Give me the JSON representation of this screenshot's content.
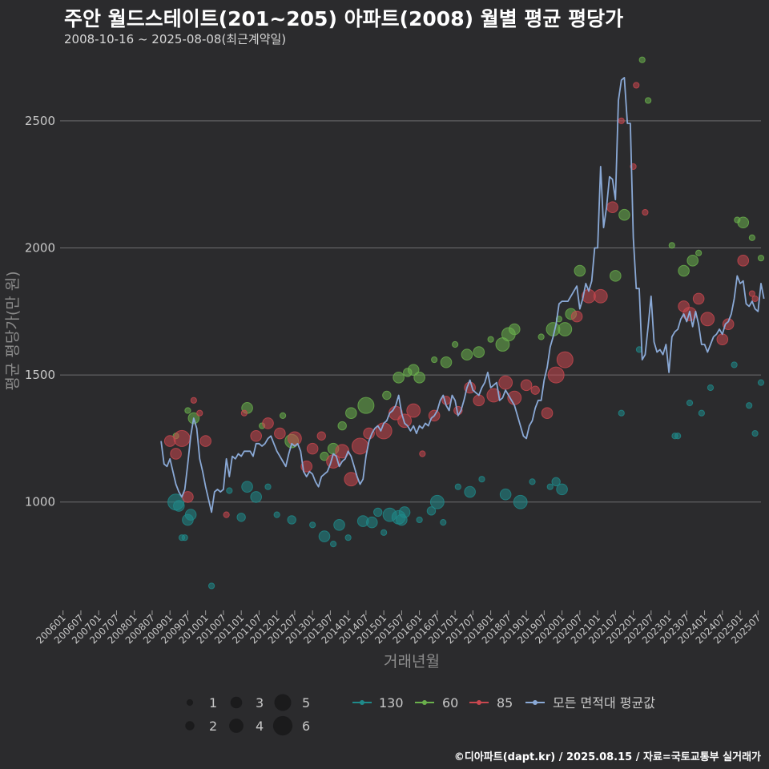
{
  "header": {
    "title": "주안 월드스테이트(201~205) 아파트(2008) 월별 평균 평당가",
    "subtitle": "2008-10-16 ~ 2025-08-08(최근계약일)"
  },
  "footer": {
    "credit": "©디아파트(dapt.kr) / 2025.08.15 / 자료=국토교통부 실거래가"
  },
  "chart_data": {
    "type": "scatter",
    "xlabel": "거래년월",
    "ylabel": "평균 평당가(만 원)",
    "x_ticks": [
      "200601",
      "200607",
      "200701",
      "200707",
      "200801",
      "200807",
      "200901",
      "200907",
      "201001",
      "201007",
      "201101",
      "201107",
      "201201",
      "201207",
      "201301",
      "201307",
      "201401",
      "201407",
      "201501",
      "201507",
      "201601",
      "201607",
      "201701",
      "201707",
      "201801",
      "201807",
      "201901",
      "201907",
      "202001",
      "202007",
      "202101",
      "202107",
      "202201",
      "202207",
      "202301",
      "202307",
      "202401",
      "202407",
      "202501",
      "202507"
    ],
    "x_range": [
      "2005-12",
      "2025-08"
    ],
    "y_ticks": [
      1000,
      1500,
      2000,
      2500
    ],
    "y_range": [
      580,
      2780
    ],
    "grid": "horizontal",
    "size_legend": {
      "values": [
        1,
        2,
        3,
        4,
        5,
        6
      ],
      "labels": [
        "1",
        "2",
        "3",
        "4",
        "5",
        "6"
      ]
    },
    "colors": {
      "130": "#1f8a8a",
      "60": "#6ab04c",
      "85": "#c9474f",
      "avg": "#8aa9d6"
    },
    "series": [
      {
        "name": "130",
        "color": "#1f8a8a",
        "points": [
          [
            "2009-03",
            1000,
            5
          ],
          [
            "2009-04",
            985,
            3
          ],
          [
            "2009-05",
            860,
            1
          ],
          [
            "2009-06",
            860,
            1
          ],
          [
            "2009-07",
            930,
            3
          ],
          [
            "2009-08",
            950,
            3
          ],
          [
            "2010-03",
            670,
            1
          ],
          [
            "2010-09",
            1045,
            1
          ],
          [
            "2011-01",
            940,
            2
          ],
          [
            "2011-03",
            1060,
            3
          ],
          [
            "2011-06",
            1020,
            3
          ],
          [
            "2011-10",
            1060,
            1
          ],
          [
            "2012-01",
            950,
            1
          ],
          [
            "2012-06",
            930,
            2
          ],
          [
            "2013-01",
            910,
            1
          ],
          [
            "2013-05",
            865,
            3
          ],
          [
            "2013-08",
            835,
            1
          ],
          [
            "2013-10",
            910,
            3
          ],
          [
            "2014-01",
            860,
            1
          ],
          [
            "2014-06",
            925,
            3
          ],
          [
            "2014-09",
            920,
            3
          ],
          [
            "2014-11",
            960,
            2
          ],
          [
            "2015-01",
            880,
            1
          ],
          [
            "2015-03",
            950,
            4
          ],
          [
            "2015-06",
            940,
            4
          ],
          [
            "2015-07",
            930,
            3
          ],
          [
            "2015-08",
            960,
            3
          ],
          [
            "2016-01",
            930,
            1
          ],
          [
            "2016-05",
            965,
            2
          ],
          [
            "2016-07",
            1000,
            4
          ],
          [
            "2016-09",
            920,
            1
          ],
          [
            "2017-02",
            1060,
            1
          ],
          [
            "2017-06",
            1040,
            3
          ],
          [
            "2017-10",
            1090,
            1
          ],
          [
            "2018-06",
            1030,
            3
          ],
          [
            "2018-11",
            1000,
            4
          ],
          [
            "2019-03",
            1080,
            1
          ],
          [
            "2019-09",
            1060,
            1
          ],
          [
            "2019-11",
            1080,
            2
          ],
          [
            "2020-01",
            1050,
            3
          ],
          [
            "2021-09",
            1350,
            1
          ],
          [
            "2022-03",
            1600,
            1
          ],
          [
            "2023-03",
            1260,
            1
          ],
          [
            "2023-04",
            1260,
            1
          ],
          [
            "2023-08",
            1390,
            1
          ],
          [
            "2023-12",
            1350,
            1
          ],
          [
            "2024-03",
            1450,
            1
          ],
          [
            "2024-11",
            1540,
            1
          ],
          [
            "2025-04",
            1380,
            1
          ],
          [
            "2025-06",
            1270,
            1
          ],
          [
            "2025-08",
            1470,
            1
          ]
        ]
      },
      {
        "name": "60",
        "color": "#6ab04c",
        "points": [
          [
            "2009-03",
            1260,
            1
          ],
          [
            "2009-07",
            1360,
            1
          ],
          [
            "2009-09",
            1330,
            3
          ],
          [
            "2011-03",
            1370,
            3
          ],
          [
            "2011-08",
            1300,
            1
          ],
          [
            "2012-03",
            1340,
            1
          ],
          [
            "2012-06",
            1240,
            4
          ],
          [
            "2013-05",
            1180,
            2
          ],
          [
            "2013-08",
            1210,
            3
          ],
          [
            "2013-11",
            1300,
            2
          ],
          [
            "2014-02",
            1350,
            3
          ],
          [
            "2014-07",
            1380,
            5
          ],
          [
            "2015-02",
            1420,
            2
          ],
          [
            "2015-06",
            1490,
            3
          ],
          [
            "2015-09",
            1510,
            2
          ],
          [
            "2015-11",
            1520,
            3
          ],
          [
            "2016-01",
            1490,
            3
          ],
          [
            "2016-06",
            1560,
            1
          ],
          [
            "2016-10",
            1550,
            3
          ],
          [
            "2017-01",
            1620,
            1
          ],
          [
            "2017-05",
            1580,
            3
          ],
          [
            "2017-09",
            1590,
            3
          ],
          [
            "2018-01",
            1640,
            1
          ],
          [
            "2018-05",
            1620,
            4
          ],
          [
            "2018-07",
            1660,
            4
          ],
          [
            "2018-09",
            1680,
            3
          ],
          [
            "2019-06",
            1650,
            1
          ],
          [
            "2019-10",
            1680,
            4
          ],
          [
            "2019-12",
            1720,
            1
          ],
          [
            "2020-02",
            1680,
            4
          ],
          [
            "2020-04",
            1740,
            3
          ],
          [
            "2020-07",
            1910,
            3
          ],
          [
            "2021-07",
            1890,
            3
          ],
          [
            "2021-10",
            2130,
            3
          ],
          [
            "2022-04",
            2740,
            1
          ],
          [
            "2022-06",
            2580,
            1
          ],
          [
            "2023-02",
            2010,
            1
          ],
          [
            "2023-06",
            1910,
            3
          ],
          [
            "2023-09",
            1950,
            3
          ],
          [
            "2023-11",
            1980,
            1
          ],
          [
            "2024-12",
            2110,
            1
          ],
          [
            "2025-02",
            2100,
            3
          ],
          [
            "2025-05",
            2040,
            1
          ],
          [
            "2025-08",
            1960,
            1
          ]
        ]
      },
      {
        "name": "85",
        "color": "#c9474f",
        "points": [
          [
            "2009-01",
            1240,
            3
          ],
          [
            "2009-03",
            1190,
            3
          ],
          [
            "2009-05",
            1250,
            5
          ],
          [
            "2009-07",
            1020,
            3
          ],
          [
            "2009-09",
            1400,
            1
          ],
          [
            "2009-11",
            1350,
            1
          ],
          [
            "2010-01",
            1240,
            3
          ],
          [
            "2010-08",
            950,
            1
          ],
          [
            "2011-02",
            1350,
            1
          ],
          [
            "2011-06",
            1260,
            3
          ],
          [
            "2011-10",
            1310,
            3
          ],
          [
            "2012-02",
            1270,
            3
          ],
          [
            "2012-07",
            1250,
            4
          ],
          [
            "2012-11",
            1140,
            3
          ],
          [
            "2013-01",
            1210,
            3
          ],
          [
            "2013-04",
            1260,
            2
          ],
          [
            "2013-08",
            1160,
            4
          ],
          [
            "2013-11",
            1200,
            4
          ],
          [
            "2014-02",
            1090,
            4
          ],
          [
            "2014-05",
            1220,
            5
          ],
          [
            "2014-08",
            1270,
            3
          ],
          [
            "2015-01",
            1280,
            5
          ],
          [
            "2015-05",
            1350,
            4
          ],
          [
            "2015-08",
            1320,
            4
          ],
          [
            "2015-11",
            1360,
            4
          ],
          [
            "2016-02",
            1190,
            1
          ],
          [
            "2016-06",
            1340,
            3
          ],
          [
            "2016-10",
            1400,
            2
          ],
          [
            "2017-02",
            1360,
            2
          ],
          [
            "2017-06",
            1450,
            3
          ],
          [
            "2017-09",
            1400,
            3
          ],
          [
            "2018-02",
            1420,
            4
          ],
          [
            "2018-06",
            1470,
            4
          ],
          [
            "2018-09",
            1410,
            4
          ],
          [
            "2019-01",
            1460,
            3
          ],
          [
            "2019-04",
            1440,
            2
          ],
          [
            "2019-08",
            1350,
            3
          ],
          [
            "2019-11",
            1500,
            5
          ],
          [
            "2020-02",
            1560,
            5
          ],
          [
            "2020-06",
            1730,
            3
          ],
          [
            "2020-10",
            1810,
            4
          ],
          [
            "2021-02",
            1810,
            4
          ],
          [
            "2021-06",
            2160,
            3
          ],
          [
            "2021-09",
            2500,
            1
          ],
          [
            "2022-01",
            2320,
            1
          ],
          [
            "2022-02",
            2640,
            1
          ],
          [
            "2022-05",
            2140,
            1
          ],
          [
            "2023-06",
            1770,
            3
          ],
          [
            "2023-08",
            1740,
            4
          ],
          [
            "2023-11",
            1800,
            3
          ],
          [
            "2024-02",
            1720,
            4
          ],
          [
            "2024-07",
            1640,
            3
          ],
          [
            "2024-09",
            1700,
            3
          ],
          [
            "2025-02",
            1950,
            3
          ],
          [
            "2025-05",
            1820,
            1
          ],
          [
            "2025-06",
            1800,
            1
          ]
        ]
      },
      {
        "name": "모든 면적대 평균값",
        "color": "#8aa9d6",
        "x_start": "2008-10",
        "values": [
          1240,
          1150,
          1140,
          1170,
          1120,
          1070,
          1040,
          1020,
          1050,
          1150,
          1260,
          1330,
          1290,
          1170,
          1120,
          1060,
          1010,
          960,
          1040,
          1050,
          1040,
          1050,
          1170,
          1100,
          1180,
          1170,
          1190,
          1180,
          1200,
          1200,
          1200,
          1180,
          1230,
          1230,
          1220,
          1230,
          1250,
          1260,
          1230,
          1200,
          1180,
          1160,
          1140,
          1190,
          1230,
          1220,
          1230,
          1200,
          1120,
          1100,
          1120,
          1110,
          1080,
          1060,
          1100,
          1110,
          1120,
          1150,
          1190,
          1180,
          1140,
          1160,
          1170,
          1200,
          1180,
          1140,
          1100,
          1070,
          1090,
          1180,
          1240,
          1270,
          1290,
          1300,
          1280,
          1310,
          1320,
          1350,
          1360,
          1380,
          1420,
          1350,
          1310,
          1300,
          1280,
          1300,
          1270,
          1300,
          1290,
          1310,
          1300,
          1330,
          1340,
          1360,
          1400,
          1420,
          1380,
          1360,
          1420,
          1400,
          1340,
          1360,
          1400,
          1450,
          1480,
          1440,
          1430,
          1420,
          1450,
          1470,
          1510,
          1450,
          1460,
          1470,
          1400,
          1410,
          1440,
          1420,
          1400,
          1380,
          1340,
          1300,
          1260,
          1250,
          1300,
          1320,
          1370,
          1400,
          1400,
          1480,
          1530,
          1610,
          1650,
          1700,
          1780,
          1790,
          1790,
          1790,
          1810,
          1830,
          1850,
          1760,
          1800,
          1860,
          1830,
          1870,
          2000,
          2000,
          2320,
          2080,
          2160,
          2280,
          2270,
          2190,
          2580,
          2660,
          2670,
          2490,
          2490,
          2040,
          1840,
          1840,
          1560,
          1580,
          1690,
          1810,
          1630,
          1590,
          1600,
          1580,
          1620,
          1510,
          1650,
          1670,
          1680,
          1720,
          1740,
          1710,
          1750,
          1690,
          1750,
          1700,
          1620,
          1620,
          1590,
          1620,
          1650,
          1660,
          1680,
          1660,
          1700,
          1710,
          1740,
          1800,
          1890,
          1860,
          1870,
          1780,
          1770,
          1790,
          1760,
          1750,
          1860,
          1800
        ]
      }
    ]
  }
}
